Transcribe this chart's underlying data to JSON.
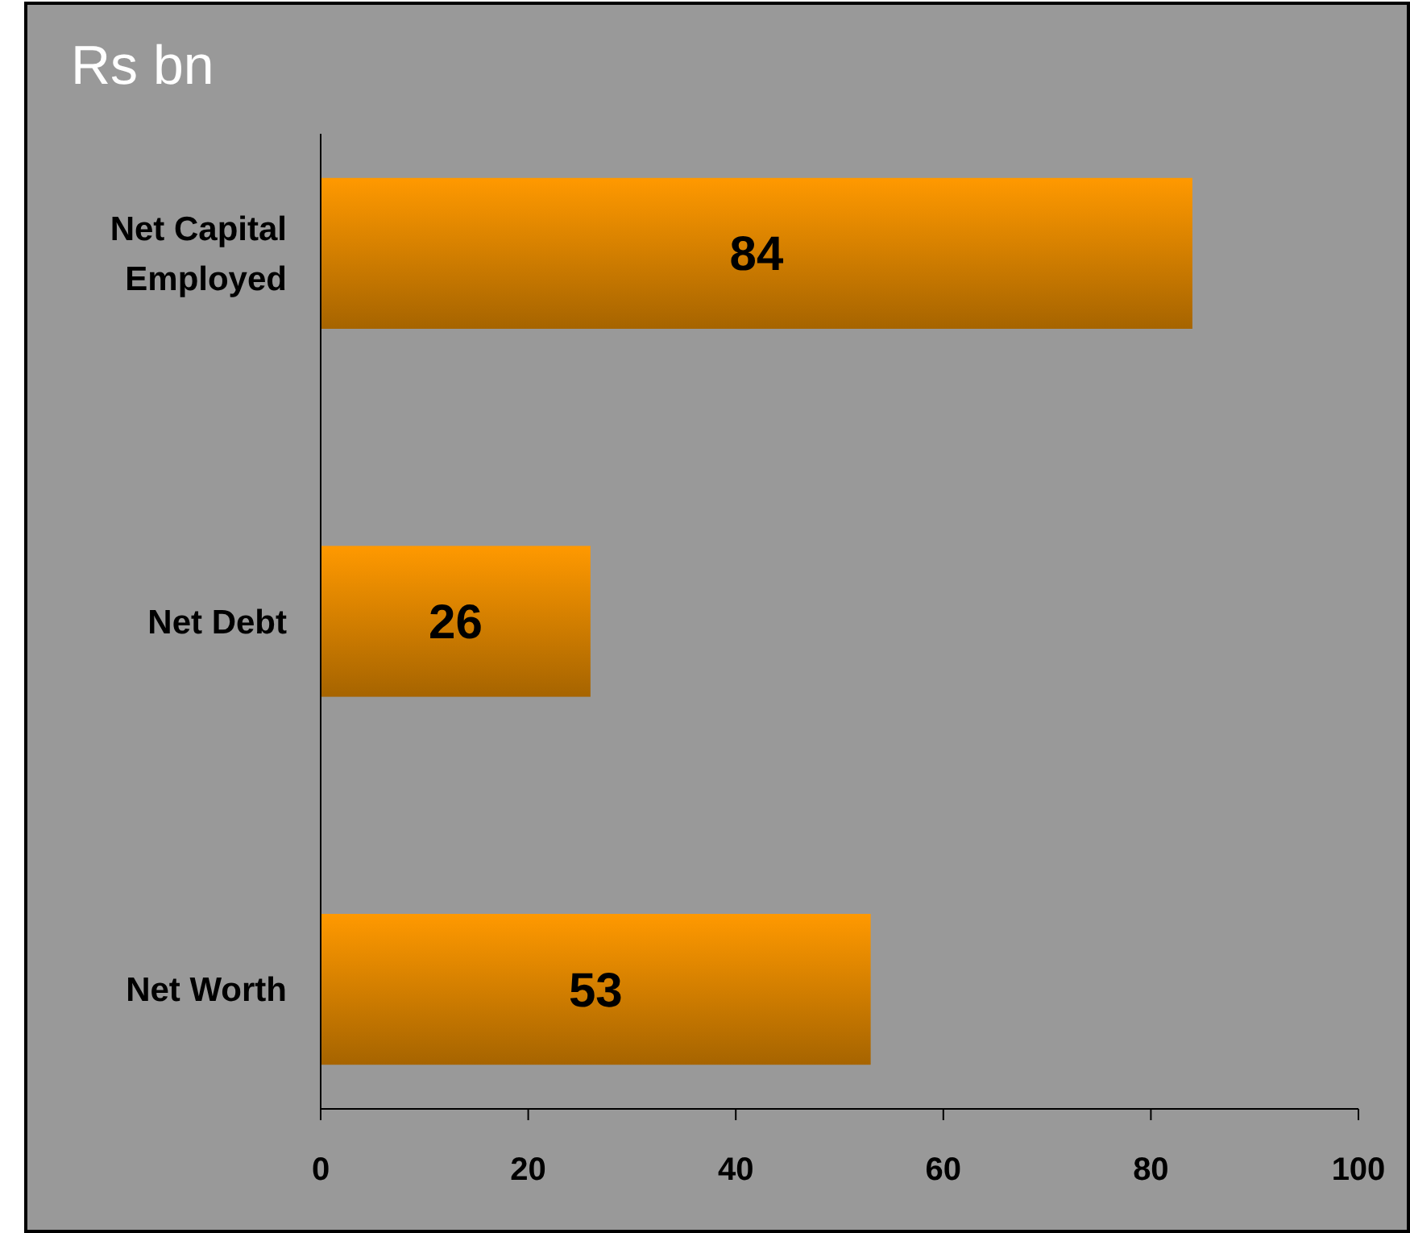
{
  "chart_data": {
    "type": "bar",
    "orientation": "horizontal",
    "title": "Rs bn",
    "categories": [
      "Net Capital Employed",
      "Net Debt",
      "Net Worth"
    ],
    "values": [
      84,
      26,
      53
    ],
    "color": "#ff9900",
    "xlim": [
      0,
      100
    ],
    "xticks": [
      0,
      20,
      40,
      60,
      80,
      100
    ],
    "data_labels": true,
    "grid": false
  }
}
